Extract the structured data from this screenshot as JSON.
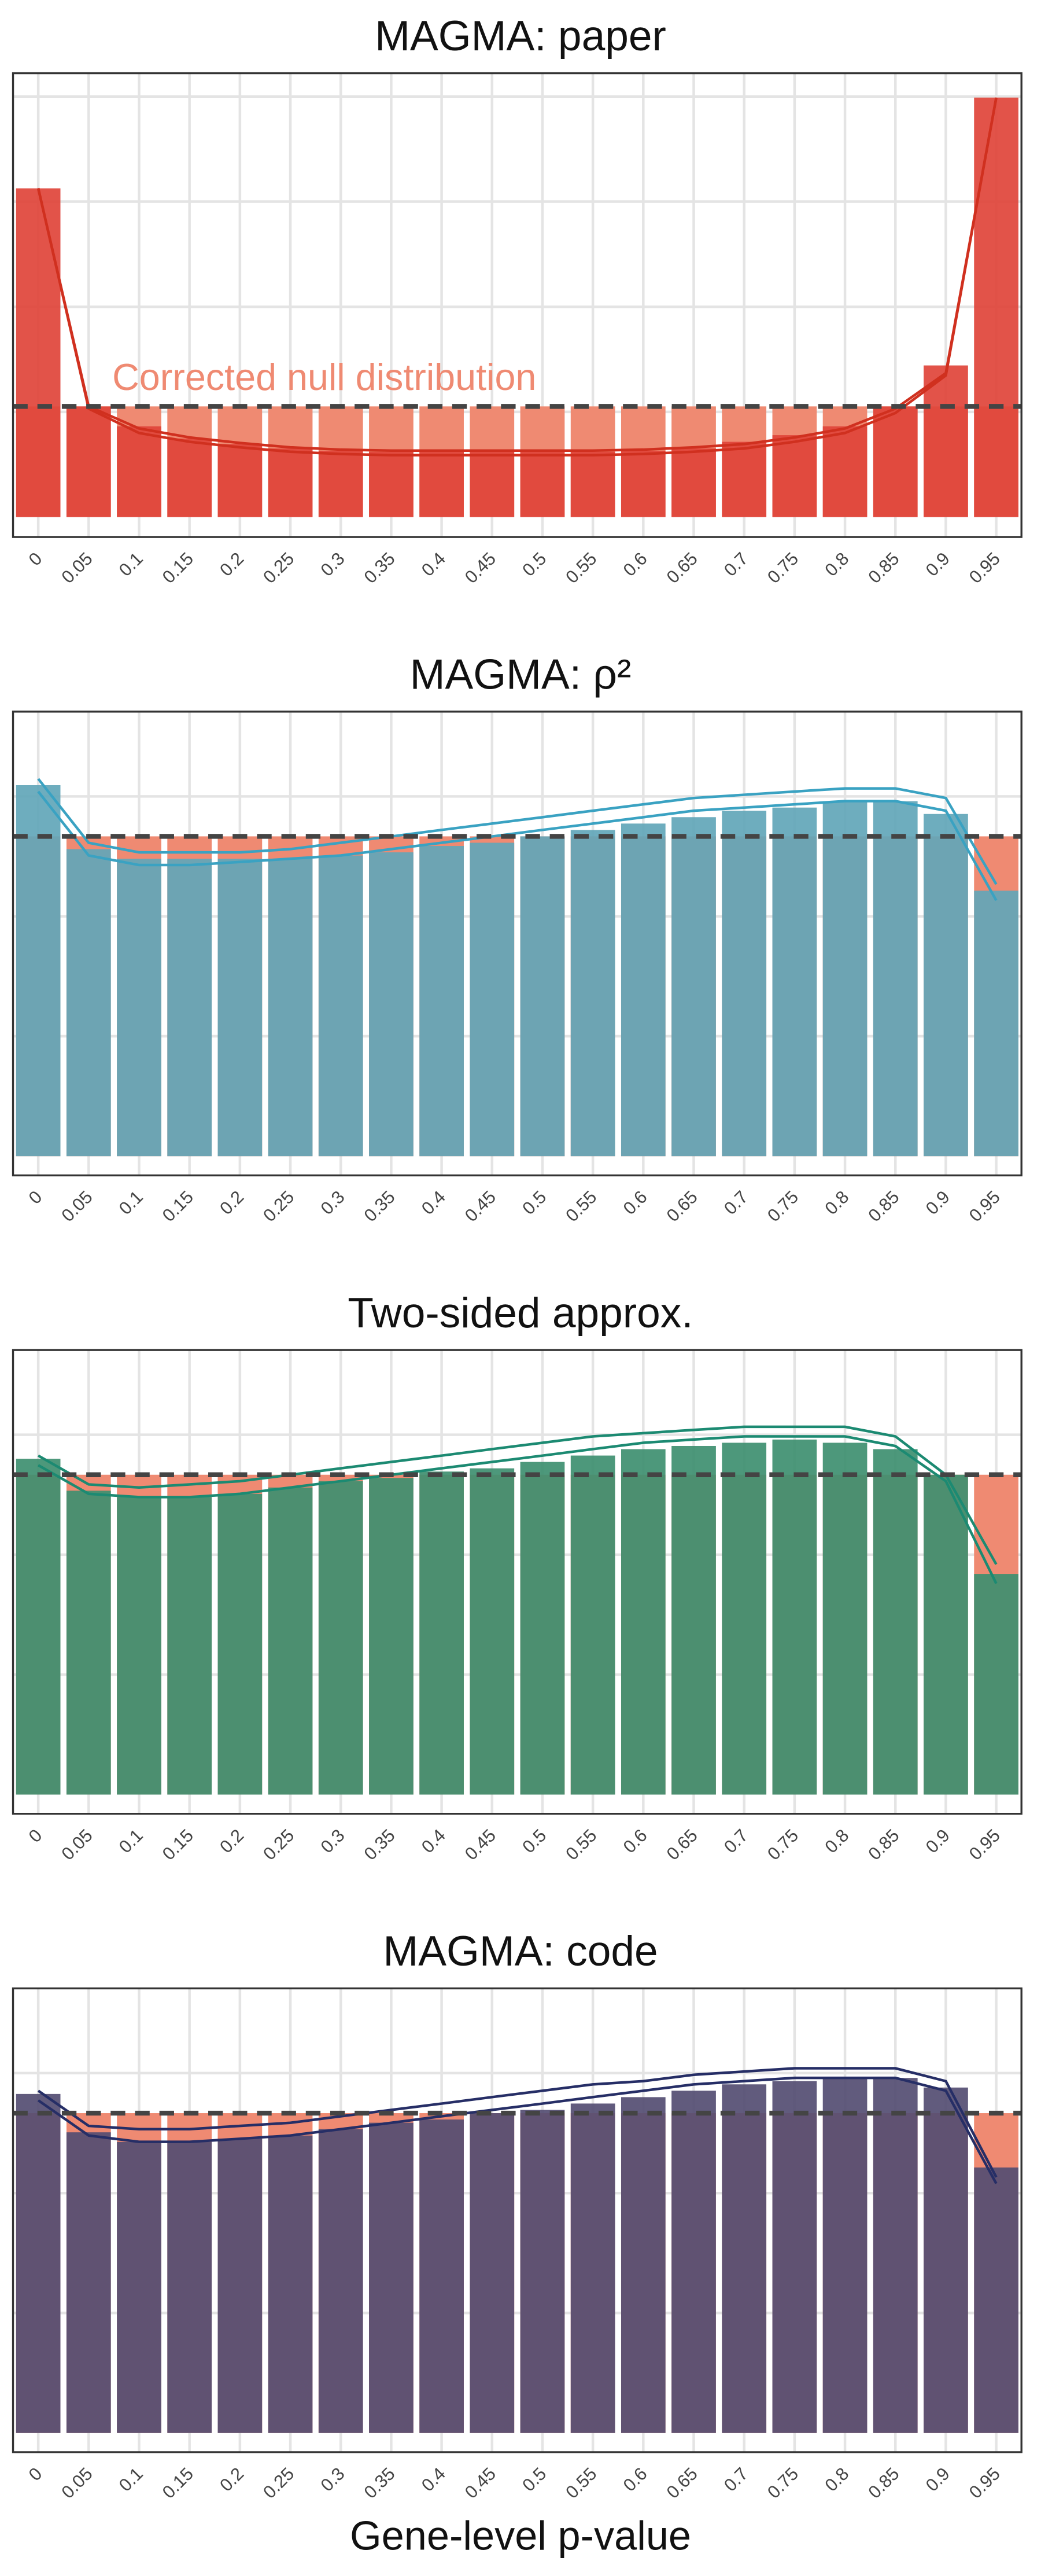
{
  "chart_data": [
    {
      "type": "bar",
      "title": "MAGMA: paper",
      "categories": [
        0,
        0.05,
        0.1,
        0.15,
        0.2,
        0.25,
        0.3,
        0.35,
        0.4,
        0.45,
        0.5,
        0.55,
        0.6,
        0.65,
        0.7,
        0.75,
        0.8,
        0.85,
        0.9,
        0.95
      ],
      "values": [
        2.97,
        1.0,
        0.82,
        0.71,
        0.66,
        0.62,
        0.6,
        0.59,
        0.59,
        0.59,
        0.59,
        0.59,
        0.6,
        0.62,
        0.68,
        0.74,
        0.82,
        1.0,
        1.37,
        3.79
      ],
      "color": "#e0443a",
      "null_values": [
        1,
        1,
        1,
        1,
        1,
        1,
        1,
        1,
        1,
        1,
        1,
        1,
        1,
        1,
        1,
        1,
        1,
        1,
        1,
        1
      ],
      "null_color": "#ef8a72",
      "lines": [
        [
          2.97,
          1.0,
          0.8,
          0.72,
          0.67,
          0.63,
          0.61,
          0.6,
          0.6,
          0.6,
          0.6,
          0.6,
          0.61,
          0.63,
          0.66,
          0.72,
          0.8,
          0.98,
          1.3,
          3.79
        ],
        [
          2.97,
          0.98,
          0.76,
          0.68,
          0.63,
          0.59,
          0.57,
          0.56,
          0.56,
          0.56,
          0.56,
          0.56,
          0.57,
          0.59,
          0.62,
          0.68,
          0.76,
          0.94,
          1.28,
          3.79
        ]
      ],
      "line_color": "#d0301f",
      "reference": 1,
      "annotation": "Corrected null distribution",
      "ylim": [
        -0.18,
        4.01
      ],
      "yticks": [
        0.95,
        1.9,
        2.85,
        3.8
      ],
      "grid": true
    },
    {
      "type": "bar",
      "title": "MAGMA: ρ²",
      "categories": [
        0,
        0.05,
        0.1,
        0.15,
        0.2,
        0.25,
        0.3,
        0.35,
        0.4,
        0.45,
        0.5,
        0.55,
        0.6,
        0.65,
        0.7,
        0.75,
        0.8,
        0.85,
        0.9,
        0.95
      ],
      "values": [
        1.16,
        0.96,
        0.93,
        0.93,
        0.93,
        0.93,
        0.94,
        0.95,
        0.97,
        0.98,
        1.0,
        1.02,
        1.04,
        1.06,
        1.08,
        1.09,
        1.11,
        1.11,
        1.07,
        0.83
      ],
      "color": "#62a6b8",
      "null_values": [
        1,
        1,
        1,
        1,
        1,
        1,
        1,
        1,
        1,
        1,
        1,
        1,
        1,
        1,
        1,
        1,
        1,
        1,
        1,
        1
      ],
      "null_color": "#ef8a72",
      "lines": [
        [
          1.18,
          0.98,
          0.95,
          0.95,
          0.95,
          0.96,
          0.98,
          1.0,
          1.02,
          1.04,
          1.06,
          1.08,
          1.1,
          1.12,
          1.13,
          1.14,
          1.15,
          1.15,
          1.12,
          0.85
        ],
        [
          1.14,
          0.94,
          0.91,
          0.91,
          0.92,
          0.93,
          0.94,
          0.96,
          0.98,
          1.0,
          1.02,
          1.04,
          1.06,
          1.08,
          1.09,
          1.1,
          1.11,
          1.11,
          1.08,
          0.8
        ]
      ],
      "line_color": "#3aa2c2",
      "reference": 1,
      "ylim": [
        -0.06,
        1.39
      ],
      "yticks": [
        0.375,
        0.75,
        1.125
      ],
      "grid": true
    },
    {
      "type": "bar",
      "title": "Two-sided approx.",
      "categories": [
        0,
        0.05,
        0.1,
        0.15,
        0.2,
        0.25,
        0.3,
        0.35,
        0.4,
        0.45,
        0.5,
        0.55,
        0.6,
        0.65,
        0.7,
        0.75,
        0.8,
        0.85,
        0.9,
        0.95
      ],
      "values": [
        1.05,
        0.95,
        0.93,
        0.93,
        0.94,
        0.96,
        0.98,
        0.99,
        1.01,
        1.02,
        1.04,
        1.06,
        1.08,
        1.09,
        1.1,
        1.11,
        1.1,
        1.08,
        1.0,
        0.69
      ],
      "color": "#3e8f70",
      "null_values": [
        1,
        1,
        1,
        1,
        1,
        1,
        1,
        1,
        1,
        1,
        1,
        1,
        1,
        1,
        1,
        1,
        1,
        1,
        1,
        1
      ],
      "null_color": "#ef8a72",
      "lines": [
        [
          1.06,
          0.97,
          0.96,
          0.97,
          0.98,
          1.0,
          1.02,
          1.04,
          1.06,
          1.08,
          1.1,
          1.12,
          1.13,
          1.14,
          1.15,
          1.15,
          1.15,
          1.12,
          1.0,
          0.72
        ],
        [
          1.03,
          0.94,
          0.93,
          0.93,
          0.94,
          0.96,
          0.98,
          1.0,
          1.02,
          1.04,
          1.06,
          1.08,
          1.1,
          1.11,
          1.12,
          1.12,
          1.12,
          1.09,
          0.98,
          0.66
        ]
      ],
      "line_color": "#1c8a72",
      "reference": 1,
      "ylim": [
        -0.06,
        1.39
      ],
      "yticks": [
        0.375,
        0.75,
        1.125
      ],
      "grid": true
    },
    {
      "type": "bar",
      "title": "MAGMA: code",
      "categories": [
        0,
        0.05,
        0.1,
        0.15,
        0.2,
        0.25,
        0.3,
        0.35,
        0.4,
        0.45,
        0.5,
        0.55,
        0.6,
        0.65,
        0.7,
        0.75,
        0.8,
        0.85,
        0.9,
        0.95
      ],
      "values": [
        1.06,
        0.94,
        0.91,
        0.91,
        0.92,
        0.93,
        0.95,
        0.97,
        0.98,
        1.0,
        1.01,
        1.03,
        1.05,
        1.07,
        1.09,
        1.1,
        1.11,
        1.11,
        1.08,
        0.83
      ],
      "color": "#544d72",
      "null_values": [
        1,
        1,
        1,
        1,
        1,
        1,
        1,
        1,
        1,
        1,
        1,
        1,
        1,
        1,
        1,
        1,
        1,
        1,
        1,
        1
      ],
      "null_color": "#ef8a72",
      "lines": [
        [
          1.07,
          0.96,
          0.95,
          0.95,
          0.96,
          0.97,
          0.99,
          1.01,
          1.03,
          1.05,
          1.07,
          1.09,
          1.1,
          1.12,
          1.13,
          1.14,
          1.14,
          1.14,
          1.1,
          0.8
        ],
        [
          1.04,
          0.93,
          0.91,
          0.91,
          0.92,
          0.93,
          0.95,
          0.97,
          0.99,
          1.01,
          1.03,
          1.05,
          1.07,
          1.09,
          1.1,
          1.11,
          1.11,
          1.11,
          1.07,
          0.78
        ]
      ],
      "line_color": "#262e66",
      "reference": 1,
      "xlabel": "Gene-level p-value",
      "ylim": [
        -0.06,
        1.39
      ],
      "yticks": [
        0.375,
        0.75,
        1.125
      ],
      "grid": true
    }
  ]
}
